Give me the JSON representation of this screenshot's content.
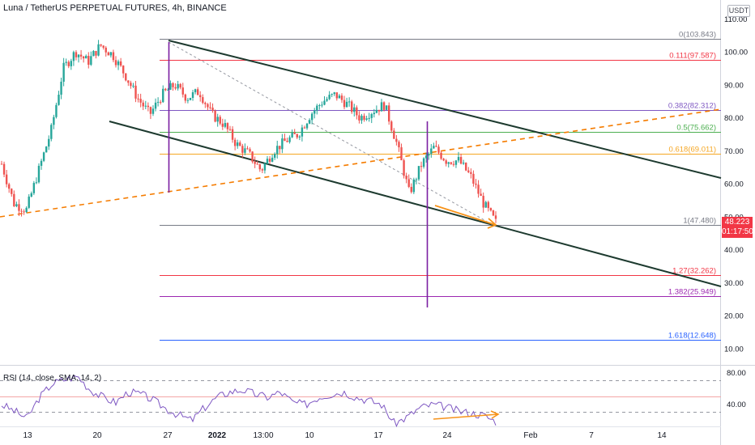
{
  "header": {
    "title": "Luna / TetherUS PERPETUAL FUTURES, 4h, BINANCE",
    "currency_badge": "USDT"
  },
  "last_price": {
    "value": "48.223",
    "countdown": "01:17:50",
    "color": "#f23645"
  },
  "rsi": {
    "label": "RSI (14, close, SMA, 14, 2)",
    "ticks": [
      "80.00",
      "40.00"
    ]
  },
  "chart_data": {
    "type": "candlestick",
    "symbol": "LUNAUSDT.P",
    "y_ticks": [
      110,
      100,
      90,
      80,
      70,
      60,
      50,
      40,
      30,
      20,
      10
    ],
    "ylim": [
      10,
      110
    ],
    "x_ticks": [
      "13",
      "20",
      "27",
      "2022",
      "13:00",
      "10",
      "17",
      "24",
      "Feb",
      "7",
      "14"
    ],
    "fibonacci": [
      {
        "label": "0(103.843)",
        "level": 0,
        "price": 103.843,
        "color": "#787b86"
      },
      {
        "label": "0.111(97.587)",
        "level": 0.111,
        "price": 97.587,
        "color": "#f23645"
      },
      {
        "label": "0.382(82.312)",
        "level": 0.382,
        "price": 82.312,
        "color": "#7e57c2"
      },
      {
        "label": "0.5(75.662)",
        "level": 0.5,
        "price": 75.662,
        "color": "#4caf50"
      },
      {
        "label": "0.618(69.011)",
        "level": 0.618,
        "price": 69.011,
        "color": "#f5a623"
      },
      {
        "label": "1(47.480)",
        "level": 1,
        "price": 47.48,
        "color": "#787b86"
      },
      {
        "label": "1.27(32.262)",
        "level": 1.27,
        "price": 32.262,
        "color": "#f23645"
      },
      {
        "label": "1.382(25.949)",
        "level": 1.382,
        "price": 25.949,
        "color": "#9c27b0"
      },
      {
        "label": "1.618(12.648)",
        "level": 1.618,
        "price": 12.648,
        "color": "#2962ff"
      }
    ],
    "close_path": [
      [
        "13",
        66
      ],
      [
        "15",
        54
      ],
      [
        "17",
        52
      ],
      [
        "19",
        64
      ],
      [
        "20",
        76
      ],
      [
        "22",
        95
      ],
      [
        "23",
        100
      ],
      [
        "25",
        97
      ],
      [
        "26",
        102
      ],
      [
        "27",
        99
      ],
      [
        "28",
        93
      ],
      [
        "29",
        86
      ],
      [
        "30",
        81
      ],
      [
        "31",
        87
      ],
      [
        "Jan 1",
        90
      ],
      [
        "2022",
        86
      ],
      [
        "Jan 3",
        88
      ],
      [
        "Jan 4",
        81
      ],
      [
        "13:00",
        78
      ],
      [
        "Jan 7",
        72
      ],
      [
        "Jan 8",
        69
      ],
      [
        "Jan 9",
        64
      ],
      [
        "10",
        70
      ],
      [
        "Jan 11",
        73
      ],
      [
        "Jan 12",
        75
      ],
      [
        "Jan 13",
        81
      ],
      [
        "Jan 15",
        85
      ],
      [
        "Jan 16",
        87
      ],
      [
        "17",
        84
      ],
      [
        "Jan 18",
        80
      ],
      [
        "Jan 19",
        82
      ],
      [
        "Jan 20",
        84
      ],
      [
        "Jan 21",
        72
      ],
      [
        "Jan 21b",
        57
      ],
      [
        "Jan 22",
        66
      ],
      [
        "Jan 23",
        71
      ],
      [
        "24",
        67
      ],
      [
        "Jan 25",
        67
      ],
      [
        "Jan 26",
        62
      ],
      [
        "Jan 27",
        54
      ],
      [
        "Jan 28",
        48.223
      ]
    ],
    "rsi_values": [
      48,
      42,
      35,
      55,
      68,
      72,
      75,
      62,
      55,
      50,
      60,
      58,
      52,
      44,
      38,
      33,
      45,
      55,
      60,
      62,
      58,
      55,
      60,
      50,
      48,
      55,
      58,
      60,
      55,
      52,
      48,
      30,
      36,
      45,
      48,
      46,
      42,
      40,
      38,
      32
    ]
  }
}
